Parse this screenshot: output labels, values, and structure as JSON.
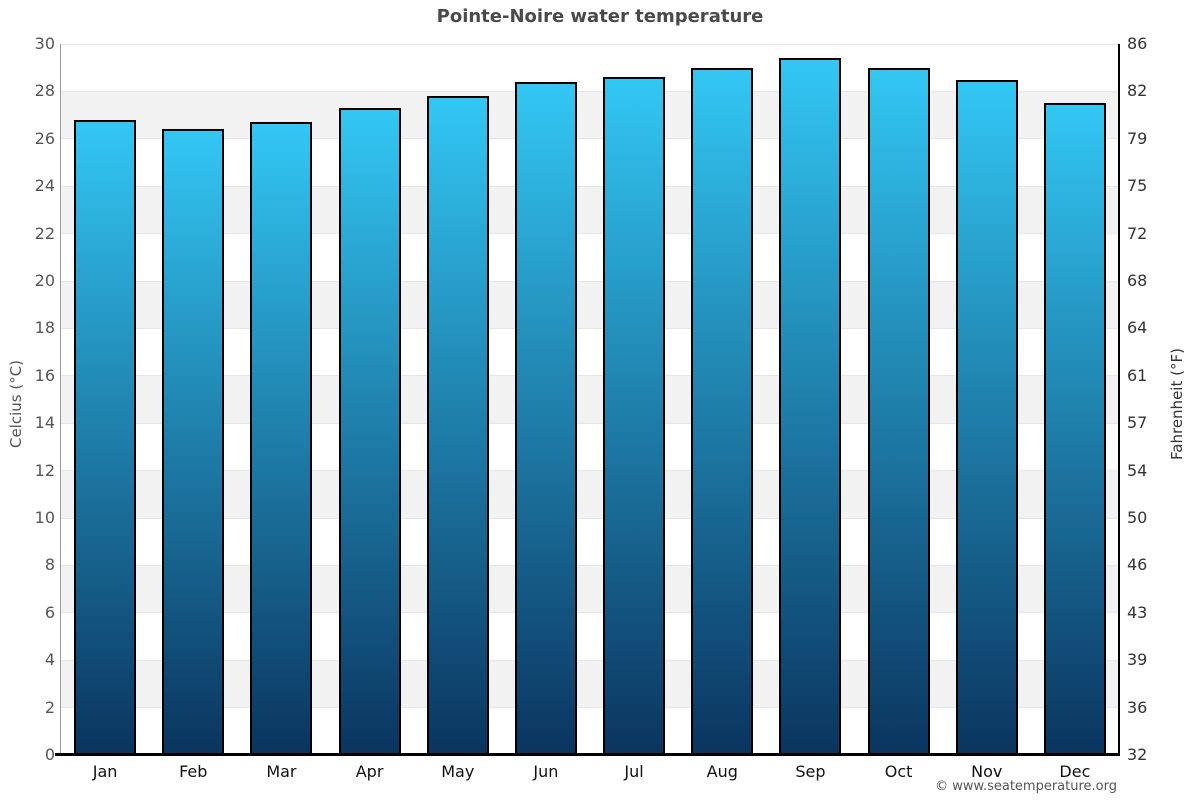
{
  "title": "Pointe-Noire water temperature",
  "footer": "© www.seatemperature.org",
  "chart_data": {
    "type": "bar",
    "title": "Pointe-Noire water temperature",
    "categories": [
      "Jan",
      "Feb",
      "Mar",
      "Apr",
      "May",
      "Jun",
      "Jul",
      "Aug",
      "Sep",
      "Oct",
      "Nov",
      "Dec"
    ],
    "values": [
      26.8,
      26.4,
      26.7,
      27.3,
      27.8,
      28.4,
      28.6,
      29.0,
      29.4,
      29.0,
      28.5,
      27.5
    ],
    "unit": "°C",
    "ylabel_left": "Celcius (°C)",
    "ylabel_right": "Fahrenheit (°F)",
    "ylim": [
      0,
      30
    ],
    "ytick_step": 2,
    "yticks_celsius": [
      30,
      28,
      26,
      24,
      22,
      20,
      18,
      16,
      14,
      12,
      10,
      8,
      6,
      4,
      2,
      0
    ],
    "yticks_fahrenheit": [
      86,
      82,
      79,
      75,
      72,
      68,
      64,
      61,
      57,
      54,
      50,
      46,
      43,
      39,
      36,
      32
    ],
    "xlabel": "",
    "legend": "none",
    "grid": "alternating gray/white horizontal bands every 2 degrees with light gridlines",
    "colors": {
      "bar_gradient_top": "#33C7F4",
      "bar_gradient_bottom": "#0A355F",
      "bar_border": "#000000",
      "band_gray": "#F2F2F2",
      "band_white": "#FFFFFF",
      "gridline": "#E6E6E6",
      "left_axis": "#999999",
      "dark_axis": "#000000",
      "title_text": "#4A4A4A",
      "tick_label_left": "#555555",
      "tick_label_right": "#333333",
      "month_label": "#111111",
      "footer_text": "#555555"
    }
  }
}
